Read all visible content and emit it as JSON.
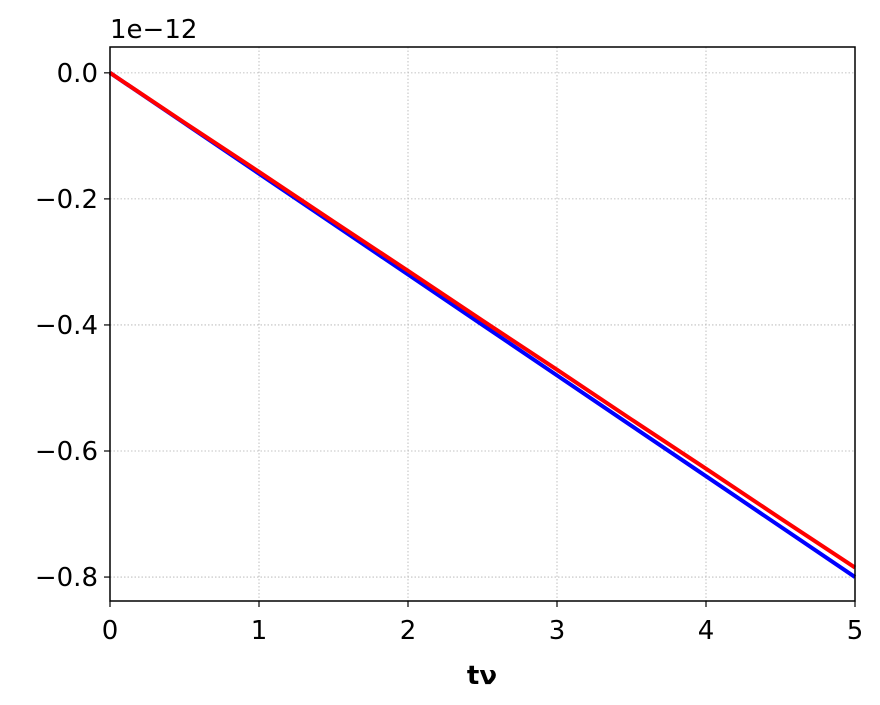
{
  "chart_data": {
    "type": "line",
    "offset_text": "1e−12",
    "x_label": "tν",
    "x": [
      0,
      0.5,
      1,
      1.5,
      2,
      2.5,
      3,
      3.5,
      4,
      4.5,
      5
    ],
    "series": [
      {
        "color": "#0000ff",
        "values": [
          0,
          -0.08,
          -0.16,
          -0.24,
          -0.32,
          -0.4,
          -0.48,
          -0.56,
          -0.64,
          -0.72,
          -0.8
        ]
      },
      {
        "color": "#ff0000",
        "values": [
          0,
          -0.079,
          -0.157,
          -0.236,
          -0.314,
          -0.393,
          -0.471,
          -0.55,
          -0.628,
          -0.707,
          -0.785
        ]
      }
    ],
    "xlim": [
      0,
      5
    ],
    "xticks": [
      0,
      1,
      2,
      3,
      4,
      5
    ],
    "ylim": [
      -0.838,
      0.041
    ],
    "yticks": [
      {
        "value": 0,
        "label": "0.0"
      },
      {
        "value": -0.2,
        "label": "−0.2"
      },
      {
        "value": -0.4,
        "label": "−0.4"
      },
      {
        "value": -0.6,
        "label": "−0.6"
      },
      {
        "value": -0.8,
        "label": "−0.8"
      }
    ],
    "grid": true
  }
}
